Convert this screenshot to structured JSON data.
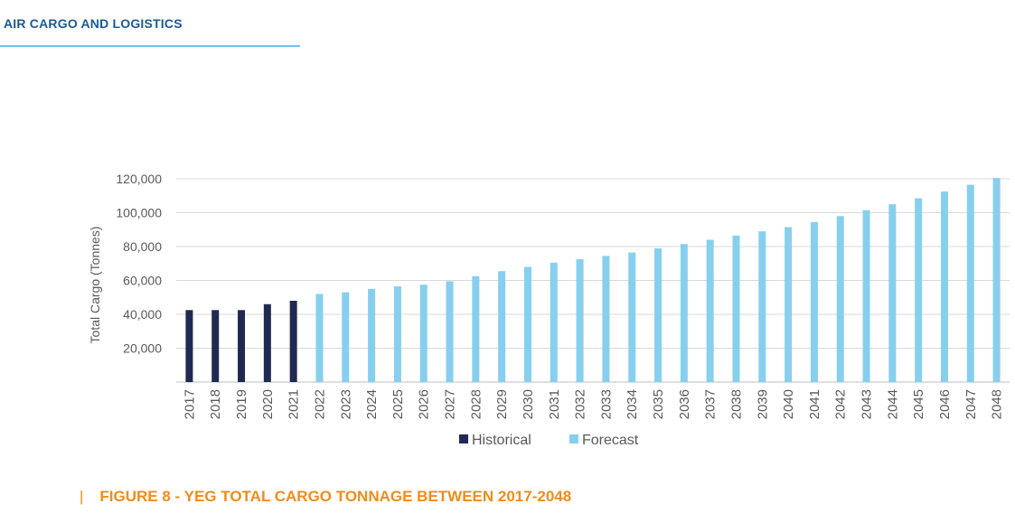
{
  "header": {
    "title": "AIR CARGO AND LOGISTICS"
  },
  "caption": {
    "marker": "|",
    "text": "FIGURE 8 - YEG TOTAL CARGO TONNAGE BETWEEN 2017-2048"
  },
  "colors": {
    "historical": "#1f2a52",
    "forecast": "#87cfee",
    "header": "#1a5a96",
    "caption": "#f28c1a"
  },
  "chart_data": {
    "type": "bar",
    "ylabel": "Total Cargo (Tonnes)",
    "ylim": [
      0,
      120000
    ],
    "yticks": [
      20000,
      40000,
      60000,
      80000,
      100000,
      120000
    ],
    "ytick_labels": [
      "20,000",
      "40,000",
      "60,000",
      "80,000",
      "100,000",
      "120,000"
    ],
    "grid": true,
    "legend_position": "bottom",
    "categories": [
      "2017",
      "2018",
      "2019",
      "2020",
      "2021",
      "2022",
      "2023",
      "2024",
      "2025",
      "2026",
      "2027",
      "2028",
      "2029",
      "2030",
      "2031",
      "2032",
      "2033",
      "2034",
      "2035",
      "2036",
      "2037",
      "2038",
      "2039",
      "2040",
      "2041",
      "2042",
      "2043",
      "2044",
      "2045",
      "2046",
      "2047",
      "2048"
    ],
    "series": [
      {
        "name": "Historical",
        "color": "#1f2a52",
        "values": [
          42500,
          42500,
          42500,
          46000,
          48000,
          null,
          null,
          null,
          null,
          null,
          null,
          null,
          null,
          null,
          null,
          null,
          null,
          null,
          null,
          null,
          null,
          null,
          null,
          null,
          null,
          null,
          null,
          null,
          null,
          null,
          null,
          null
        ]
      },
      {
        "name": "Forecast",
        "color": "#87cfee",
        "values": [
          null,
          null,
          null,
          null,
          null,
          52000,
          53000,
          55000,
          56500,
          57500,
          59500,
          62500,
          65500,
          68000,
          70500,
          72500,
          74500,
          76500,
          79000,
          81500,
          84000,
          86500,
          89000,
          91500,
          94500,
          98000,
          101500,
          105000,
          108500,
          112500,
          116500,
          120500
        ]
      }
    ]
  }
}
